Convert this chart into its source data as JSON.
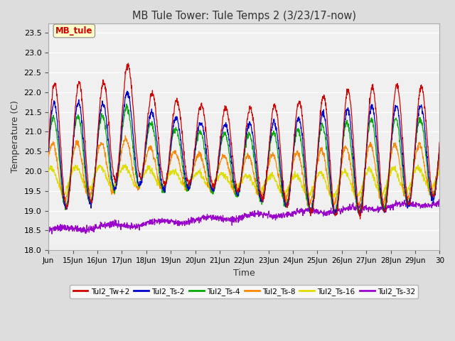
{
  "title": "MB Tule Tower: Tule Temps 2 (3/23/17-now)",
  "xlabel": "Time",
  "ylabel": "Temperature (C)",
  "ylim": [
    18.0,
    23.75
  ],
  "yticks": [
    18.0,
    18.5,
    19.0,
    19.5,
    20.0,
    20.5,
    21.0,
    21.5,
    22.0,
    22.5,
    23.0,
    23.5
  ],
  "xtick_labels": [
    "Jun",
    "15Jun",
    "16Jun",
    "17Jun",
    "18Jun",
    "19Jun",
    "20Jun",
    "21Jun",
    "22Jun",
    "23Jun",
    "24Jun",
    "25Jun",
    "26Jun",
    "27Jun",
    "28Jun",
    "29Jun",
    "30"
  ],
  "n_points": 1600,
  "xlim": [
    0,
    16
  ],
  "legend_items": [
    {
      "label": "Tul2_Tw+2",
      "color": "#cc0000"
    },
    {
      "label": "Tul2_Ts-2",
      "color": "#0000cc"
    },
    {
      "label": "Tul2_Ts-4",
      "color": "#00aa00"
    },
    {
      "label": "Tul2_Ts-8",
      "color": "#ff8800"
    },
    {
      "label": "Tul2_Ts-16",
      "color": "#dddd00"
    },
    {
      "label": "Tul2_Ts-32",
      "color": "#9900cc"
    }
  ],
  "bg_color": "#dddddd",
  "plot_bg_color": "#f0f0f0",
  "grid_color": "#ffffff",
  "annotation_label": "MB_tule",
  "annotation_color": "#cc0000",
  "annotation_bg": "#ffffcc"
}
